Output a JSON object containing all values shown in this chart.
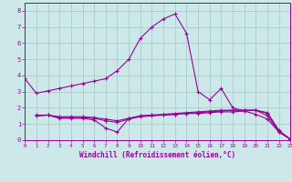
{
  "xlabel": "Windchill (Refroidissement éolien,°C)",
  "background_color": "#cce8e8",
  "grid_color": "#aacccc",
  "line_color": "#990099",
  "xlim": [
    0,
    23
  ],
  "ylim": [
    0,
    8.5
  ],
  "xticks": [
    0,
    1,
    2,
    3,
    4,
    5,
    6,
    7,
    8,
    9,
    10,
    11,
    12,
    13,
    14,
    15,
    16,
    17,
    18,
    19,
    20,
    21,
    22,
    23
  ],
  "yticks": [
    0,
    1,
    2,
    3,
    4,
    5,
    6,
    7,
    8
  ],
  "series": [
    {
      "x": [
        0,
        1,
        2,
        3,
        4,
        5,
        6,
        7,
        8,
        9,
        10,
        11,
        12,
        13,
        14,
        15,
        16,
        17,
        18,
        19,
        20,
        21,
        22,
        23
      ],
      "y": [
        3.8,
        2.9,
        3.05,
        3.2,
        3.35,
        3.5,
        3.65,
        3.8,
        4.3,
        5.0,
        6.3,
        7.0,
        7.5,
        7.8,
        6.6,
        3.0,
        2.5,
        3.2,
        2.0,
        1.8,
        1.6,
        1.3,
        0.5,
        0.05
      ]
    },
    {
      "x": [
        1,
        2,
        3,
        4,
        5,
        6,
        7,
        8,
        9,
        10,
        11,
        12,
        13,
        14,
        15,
        16,
        17,
        18,
        19,
        20,
        21,
        22,
        23
      ],
      "y": [
        1.55,
        1.55,
        1.35,
        1.35,
        1.35,
        1.25,
        0.75,
        0.5,
        1.35,
        1.5,
        1.55,
        1.55,
        1.6,
        1.65,
        1.65,
        1.7,
        1.75,
        1.75,
        1.8,
        1.85,
        1.5,
        0.5,
        0.05
      ]
    },
    {
      "x": [
        1,
        2,
        3,
        4,
        5,
        6,
        7,
        8,
        9,
        10,
        11,
        12,
        13,
        14,
        15,
        16,
        17,
        18,
        19,
        20,
        21,
        22,
        23
      ],
      "y": [
        1.5,
        1.55,
        1.4,
        1.4,
        1.4,
        1.35,
        1.2,
        1.1,
        1.3,
        1.45,
        1.5,
        1.55,
        1.6,
        1.65,
        1.7,
        1.75,
        1.8,
        1.85,
        1.85,
        1.85,
        1.65,
        0.55,
        0.05
      ]
    },
    {
      "x": [
        1,
        2,
        3,
        4,
        5,
        6,
        7,
        8,
        9,
        10,
        11,
        12,
        13,
        14,
        15,
        16,
        17,
        18,
        19,
        20,
        21,
        22,
        23
      ],
      "y": [
        1.5,
        1.55,
        1.45,
        1.45,
        1.45,
        1.4,
        1.3,
        1.2,
        1.35,
        1.5,
        1.55,
        1.6,
        1.65,
        1.7,
        1.75,
        1.8,
        1.85,
        1.85,
        1.85,
        1.85,
        1.7,
        0.6,
        0.05
      ]
    }
  ]
}
